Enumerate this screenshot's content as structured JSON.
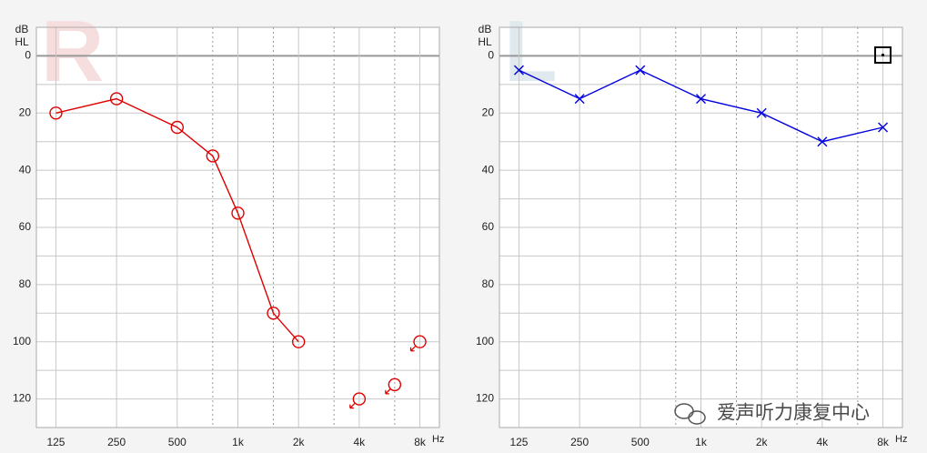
{
  "chart_data": [
    {
      "type": "line",
      "ear_label": "R",
      "ear_color": "#f7dede",
      "ylabel": [
        "dB",
        "HL"
      ],
      "xlabel": "Hz",
      "xscale": "log",
      "xlim": [
        100,
        10000
      ],
      "xticks": [
        125,
        250,
        500,
        {
          "value": 1000,
          "label": "1k"
        },
        {
          "value": 2000,
          "label": "2k"
        },
        {
          "value": 4000,
          "label": "4k"
        },
        {
          "value": 8000,
          "label": "8k"
        }
      ],
      "xgrid_dotted": [
        750,
        1500,
        3000,
        6000
      ],
      "ylim": [
        -10,
        130
      ],
      "y_inverted": true,
      "yticks": [
        0,
        20,
        40,
        60,
        80,
        100,
        120
      ],
      "grid": true,
      "series": [
        {
          "color": "#e00000",
          "marker": "circle",
          "connected": true,
          "no_response": false,
          "x": [
            125,
            250,
            500,
            750,
            1000,
            1500,
            2000
          ],
          "values": [
            20,
            15,
            25,
            35,
            55,
            90,
            100
          ]
        },
        {
          "color": "#e00000",
          "marker": "circle",
          "connected": false,
          "no_response": true,
          "x": [
            4000,
            6000,
            8000
          ],
          "values": [
            120,
            115,
            100
          ]
        }
      ]
    },
    {
      "type": "line",
      "ear_label": "L",
      "ear_color": "#dfe9ee",
      "ylabel": [
        "dB",
        "HL"
      ],
      "xlabel": "Hz",
      "xscale": "log",
      "xlim": [
        100,
        10000
      ],
      "xticks": [
        125,
        250,
        500,
        {
          "value": 1000,
          "label": "1k"
        },
        {
          "value": 2000,
          "label": "2k"
        },
        {
          "value": 4000,
          "label": "4k"
        },
        {
          "value": 8000,
          "label": "8k"
        }
      ],
      "xgrid_dotted": [
        750,
        1500,
        3000,
        6000
      ],
      "ylim": [
        -10,
        130
      ],
      "y_inverted": true,
      "yticks": [
        0,
        20,
        40,
        60,
        80,
        100,
        120
      ],
      "grid": true,
      "series": [
        {
          "color": "#0000e0",
          "marker": "x",
          "connected": true,
          "no_response": false,
          "x": [
            125,
            250,
            500,
            1000,
            2000,
            4000,
            8000
          ],
          "values": [
            5,
            15,
            5,
            15,
            20,
            30,
            25
          ]
        }
      ]
    }
  ],
  "watermark": "爱声听力康复中心"
}
